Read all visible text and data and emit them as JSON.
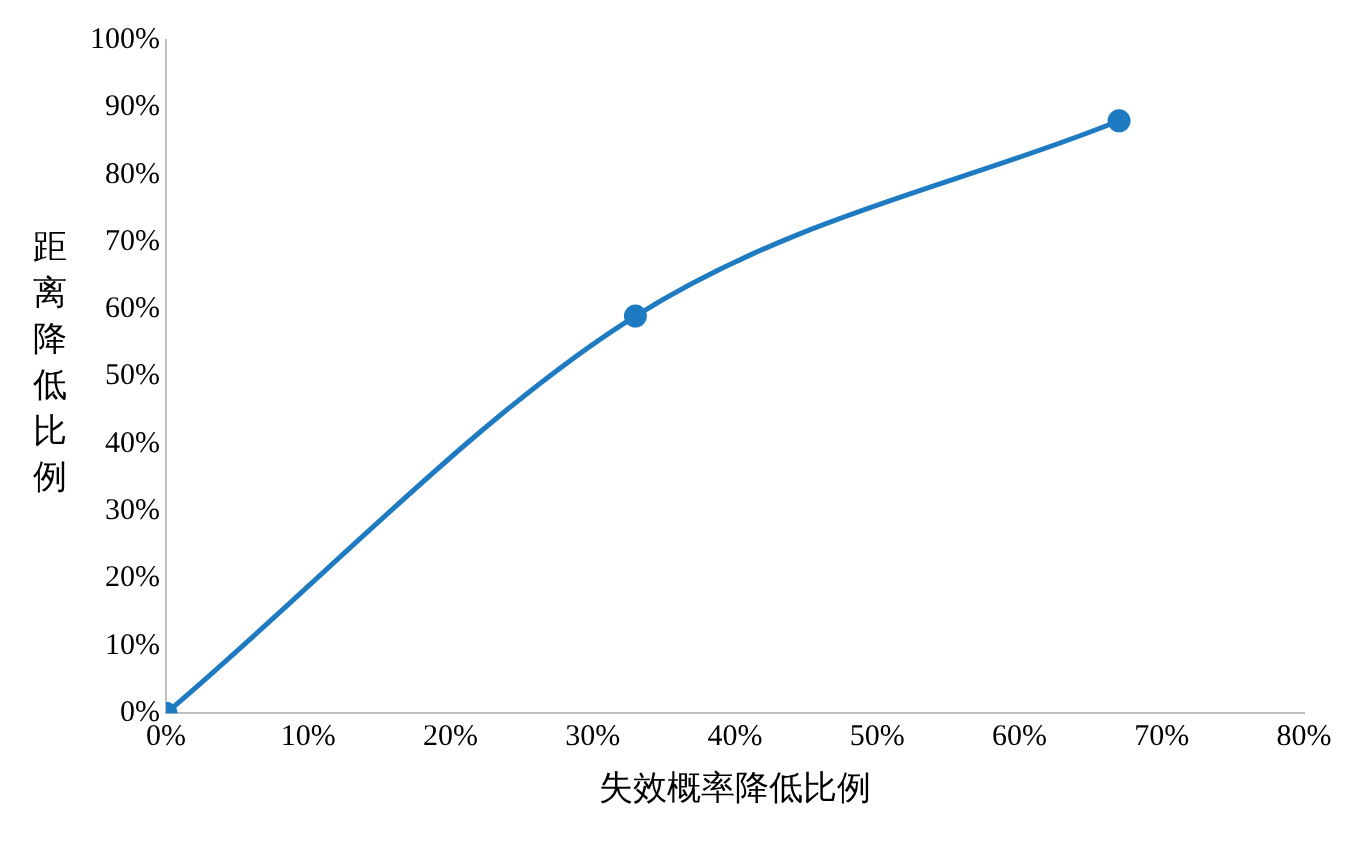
{
  "chart_data": {
    "type": "line",
    "xlabel": "失效概率降低比例",
    "ylabel": "距离降低比例",
    "x": [
      0,
      33,
      67
    ],
    "series": [
      {
        "color": "#1f7bc1",
        "values": [
          0,
          59,
          88
        ]
      }
    ],
    "xlim": [
      0,
      80
    ],
    "xticks": [
      {
        "value": 0,
        "label": "0%"
      },
      {
        "value": 10,
        "label": "10%"
      },
      {
        "value": 20,
        "label": "20%"
      },
      {
        "value": 30,
        "label": "30%"
      },
      {
        "value": 40,
        "label": "40%"
      },
      {
        "value": 50,
        "label": "50%"
      },
      {
        "value": 60,
        "label": "60%"
      },
      {
        "value": 70,
        "label": "70%"
      },
      {
        "value": 80,
        "label": "80%"
      }
    ],
    "ylim": [
      0,
      100
    ],
    "yticks": [
      {
        "value": 0,
        "label": "0%"
      },
      {
        "value": 10,
        "label": "10%"
      },
      {
        "value": 20,
        "label": "20%"
      },
      {
        "value": 30,
        "label": "30%"
      },
      {
        "value": 40,
        "label": "40%"
      },
      {
        "value": 50,
        "label": "50%"
      },
      {
        "value": 60,
        "label": "60%"
      },
      {
        "value": 70,
        "label": "70%"
      },
      {
        "value": 80,
        "label": "80%"
      },
      {
        "value": 90,
        "label": "90%"
      },
      {
        "value": 100,
        "label": "100%"
      }
    ],
    "grid": false,
    "legend": false,
    "marker": "circle",
    "line_style": "solid"
  }
}
